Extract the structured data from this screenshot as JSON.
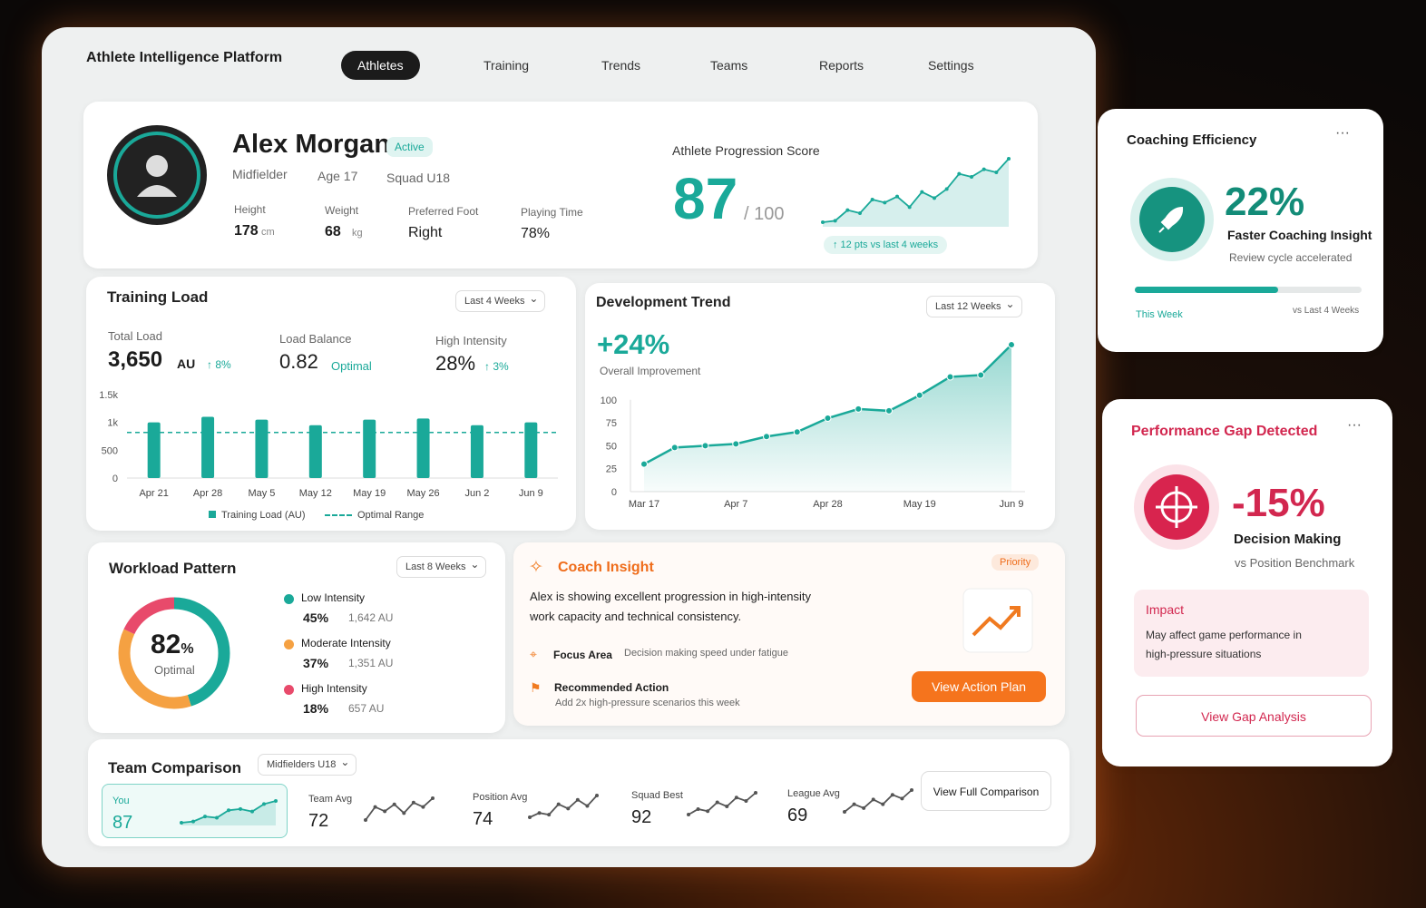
{
  "header": {
    "title": "Athlete Intelligence Platform",
    "nav": [
      "Athletes",
      "Training",
      "Trends",
      "Teams",
      "Reports",
      "Settings"
    ]
  },
  "profile": {
    "name": "Alex Morgan",
    "status": "Active",
    "position": "Midfielder",
    "age": "Age 17",
    "squad": "Squad U18",
    "stats": [
      {
        "label": "Height",
        "value": "178",
        "unit": "cm"
      },
      {
        "label": "Weight",
        "value": "68",
        "unit": "kg"
      },
      {
        "label": "Preferred Foot",
        "value": "Right"
      },
      {
        "label": "Playing Time",
        "value": "78%"
      }
    ]
  },
  "progression": {
    "title": "Athlete Progression Score",
    "score": "87",
    "max": "/ 100",
    "delta": "↑ 12 pts vs last 4 weeks",
    "chart": {
      "type": "line",
      "color": "#1aa999",
      "values": [
        30,
        31,
        38,
        36,
        45,
        43,
        47,
        40,
        50,
        46,
        52,
        62,
        60,
        65,
        63,
        72
      ]
    }
  },
  "training_load": {
    "title": "Training Load",
    "range": "Last 4 Weeks",
    "kpis": [
      {
        "label": "Total Load",
        "value": "3,650",
        "unit": "AU",
        "delta": "↑ 8%"
      },
      {
        "label": "Load Balance",
        "value": "0.82",
        "note": "Optimal"
      },
      {
        "label": "High Intensity",
        "value": "28%",
        "delta": "↑ 3%"
      }
    ],
    "chart": {
      "type": "bar",
      "categories": [
        "Apr 21",
        "Apr 28",
        "May 5",
        "May 12",
        "May 19",
        "May 26",
        "Jun 2",
        "Jun 9"
      ],
      "series": [
        {
          "name": "Training Load (AU)",
          "color": "#1aa999",
          "values": [
            1000,
            1100,
            1050,
            950,
            1050,
            1070,
            950,
            1000
          ]
        }
      ],
      "reference": {
        "name": "Optimal Range",
        "value": 820,
        "color": "#1aa999"
      },
      "ylim": [
        0,
        1500
      ],
      "yticks": [
        0,
        500,
        {
          "value": 1000,
          "label": "1k"
        },
        {
          "value": 1500,
          "label": "1.5k"
        }
      ],
      "grid": false
    }
  },
  "development": {
    "title": "Development Trend",
    "range": "Last 12 Weeks",
    "headline": "+24%",
    "subtitle": "Overall Improvement",
    "chart": {
      "type": "line",
      "categories": [
        "Mar 17",
        null,
        null,
        "Apr 7",
        null,
        null,
        "Apr 28",
        null,
        null,
        "May 19",
        null,
        null,
        "Jun 9"
      ],
      "values": [
        30,
        48,
        50,
        52,
        60,
        65,
        80,
        90,
        88,
        105,
        125,
        127,
        160
      ],
      "color": "#1aa999",
      "ylim": [
        0,
        165
      ],
      "yticks": [
        0,
        25,
        50,
        75,
        100
      ],
      "grid": false
    }
  },
  "workload": {
    "title": "Workload Pattern",
    "range": "Last 8 Weeks",
    "center_value": "82",
    "center_unit": "%",
    "center_label": "Optimal",
    "chart": {
      "type": "pie",
      "series": [
        {
          "name": "Low Intensity",
          "color": "#1aa999",
          "value": 45,
          "value_label": "45%",
          "load": "1,642 AU"
        },
        {
          "name": "Moderate Intensity",
          "color": "#f5a142",
          "value": 37,
          "value_label": "37%",
          "load": "1,351 AU"
        },
        {
          "name": "High Intensity",
          "color": "#e84a6b",
          "value": 18,
          "value_label": "18%",
          "load": "657 AU"
        }
      ]
    }
  },
  "insight": {
    "title": "Coach Insight",
    "badge": "Priority",
    "text": "Alex is showing excellent progression in high-intensity work capacity and technical consistency.",
    "focus_label": "Focus Area",
    "focus": "Decision making speed under fatigue",
    "action_label": "Recommended Action",
    "action": "Add 2x high-pressure scenarios this week",
    "button": "View Action Plan"
  },
  "team": {
    "title": "Team Comparison",
    "filter": "Midfielders U18",
    "button": "View Full Comparison",
    "items": [
      {
        "label": "You",
        "value": 87,
        "spark": [
          20,
          22,
          30,
          28,
          40,
          42,
          38,
          50,
          55
        ]
      },
      {
        "label": "Team Avg",
        "value": 72,
        "spark": [
          20,
          35,
          30,
          38,
          28,
          40,
          35,
          45
        ]
      },
      {
        "label": "Position Avg",
        "value": 74,
        "spark": [
          25,
          30,
          28,
          40,
          35,
          45,
          38,
          50
        ]
      },
      {
        "label": "Squad Best",
        "value": 92,
        "spark": [
          20,
          28,
          25,
          38,
          32,
          45,
          40,
          52
        ]
      },
      {
        "label": "League Avg",
        "value": 69,
        "spark": [
          22,
          30,
          26,
          35,
          30,
          40,
          36,
          45
        ]
      }
    ]
  },
  "coaching": {
    "title": "Coaching Efficiency",
    "value": "22%",
    "label": "Faster Coaching Insight",
    "note": "Review cycle accelerated",
    "progress": 63,
    "progress_lim": [
      0,
      100
    ],
    "left": "This Week",
    "right": "vs Last 4 Weeks"
  },
  "gap": {
    "title": "Performance Gap Detected",
    "value": "-15%",
    "label": "Decision Making",
    "note": "vs Position Benchmark",
    "impact_title": "Impact",
    "impact": "May affect game performance in high-pressure situations",
    "button": "View Gap Analysis"
  }
}
